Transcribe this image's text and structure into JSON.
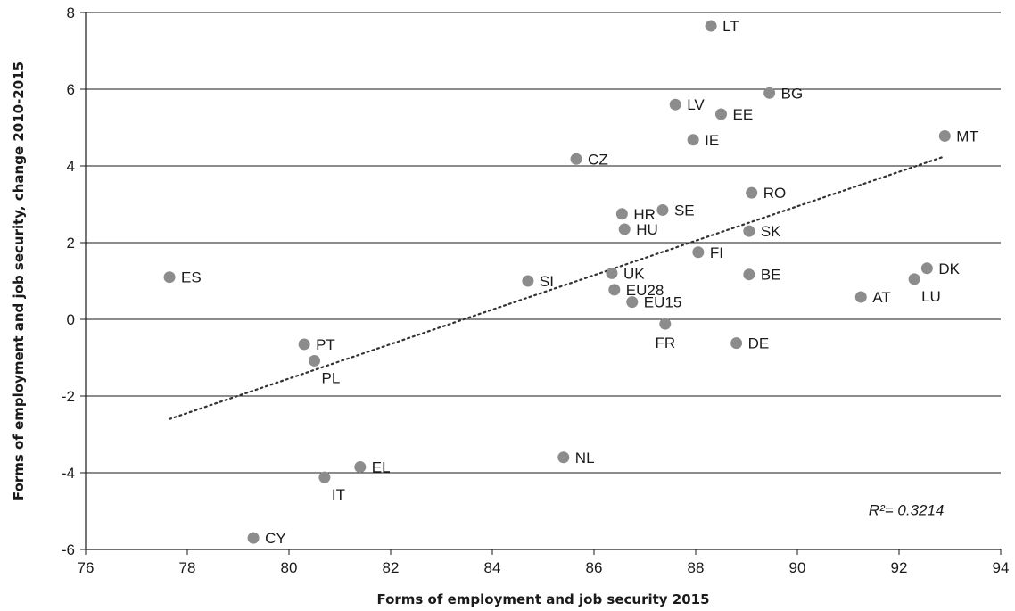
{
  "chart_data": {
    "type": "scatter",
    "title": "",
    "xlabel": "Forms of employment and job security 2015",
    "ylabel": "Forms of employment and job security, change 2010-2015",
    "xlim": [
      76,
      94
    ],
    "ylim": [
      -6,
      8
    ],
    "x_ticks": [
      76,
      78,
      80,
      82,
      84,
      86,
      88,
      90,
      92,
      94
    ],
    "y_ticks": [
      -6,
      -4,
      -2,
      0,
      2,
      4,
      6,
      8
    ],
    "x_tick_labels": [
      "76",
      "78",
      "80",
      "82",
      "84",
      "86",
      "88",
      "90",
      "92",
      "94"
    ],
    "y_tick_labels": [
      "-6",
      "-4",
      "-2",
      "0",
      "2",
      "4",
      "6",
      "8"
    ],
    "grid": "horizontal",
    "marker_color": "#8c8c8c",
    "points": [
      {
        "label": "LT",
        "x": 88.3,
        "y": 7.65,
        "label_pos": "right"
      },
      {
        "label": "BG",
        "x": 89.45,
        "y": 5.9,
        "label_pos": "right"
      },
      {
        "label": "LV",
        "x": 87.6,
        "y": 5.6,
        "label_pos": "right"
      },
      {
        "label": "EE",
        "x": 88.5,
        "y": 5.35,
        "label_pos": "right"
      },
      {
        "label": "MT",
        "x": 92.9,
        "y": 4.78,
        "label_pos": "right"
      },
      {
        "label": "IE",
        "x": 87.95,
        "y": 4.68,
        "label_pos": "right"
      },
      {
        "label": "CZ",
        "x": 85.65,
        "y": 4.18,
        "label_pos": "right"
      },
      {
        "label": "RO",
        "x": 89.1,
        "y": 3.3,
        "label_pos": "right"
      },
      {
        "label": "SE",
        "x": 87.35,
        "y": 2.85,
        "label_pos": "right"
      },
      {
        "label": "HR",
        "x": 86.55,
        "y": 2.75,
        "label_pos": "right"
      },
      {
        "label": "HU",
        "x": 86.6,
        "y": 2.35,
        "label_pos": "right"
      },
      {
        "label": "SK",
        "x": 89.05,
        "y": 2.3,
        "label_pos": "right"
      },
      {
        "label": "FI",
        "x": 88.05,
        "y": 1.75,
        "label_pos": "right"
      },
      {
        "label": "DK",
        "x": 92.55,
        "y": 1.33,
        "label_pos": "right"
      },
      {
        "label": "UK",
        "x": 86.35,
        "y": 1.2,
        "label_pos": "right"
      },
      {
        "label": "BE",
        "x": 89.05,
        "y": 1.17,
        "label_pos": "right"
      },
      {
        "label": "ES",
        "x": 77.65,
        "y": 1.1,
        "label_pos": "right"
      },
      {
        "label": "LU",
        "x": 92.3,
        "y": 1.05,
        "label_pos": "below-right"
      },
      {
        "label": "SI",
        "x": 84.7,
        "y": 1.0,
        "label_pos": "right"
      },
      {
        "label": "EU28",
        "x": 86.4,
        "y": 0.77,
        "label_pos": "right"
      },
      {
        "label": "AT",
        "x": 91.25,
        "y": 0.58,
        "label_pos": "right"
      },
      {
        "label": "EU15",
        "x": 86.75,
        "y": 0.45,
        "label_pos": "right"
      },
      {
        "label": "FR",
        "x": 87.4,
        "y": -0.12,
        "label_pos": "below"
      },
      {
        "label": "DE",
        "x": 88.8,
        "y": -0.62,
        "label_pos": "right"
      },
      {
        "label": "PT",
        "x": 80.3,
        "y": -0.65,
        "label_pos": "right"
      },
      {
        "label": "PL",
        "x": 80.5,
        "y": -1.08,
        "label_pos": "below-right"
      },
      {
        "label": "NL",
        "x": 85.4,
        "y": -3.6,
        "label_pos": "right"
      },
      {
        "label": "EL",
        "x": 81.4,
        "y": -3.85,
        "label_pos": "right"
      },
      {
        "label": "IT",
        "x": 80.7,
        "y": -4.12,
        "label_pos": "below-right"
      },
      {
        "label": "CY",
        "x": 79.3,
        "y": -5.7,
        "label_pos": "right"
      }
    ],
    "trendline": {
      "style": "dotted",
      "x": [
        77.65,
        92.9
      ],
      "y": [
        -2.6,
        4.25
      ]
    },
    "annotation": "R²= 0.3214"
  }
}
